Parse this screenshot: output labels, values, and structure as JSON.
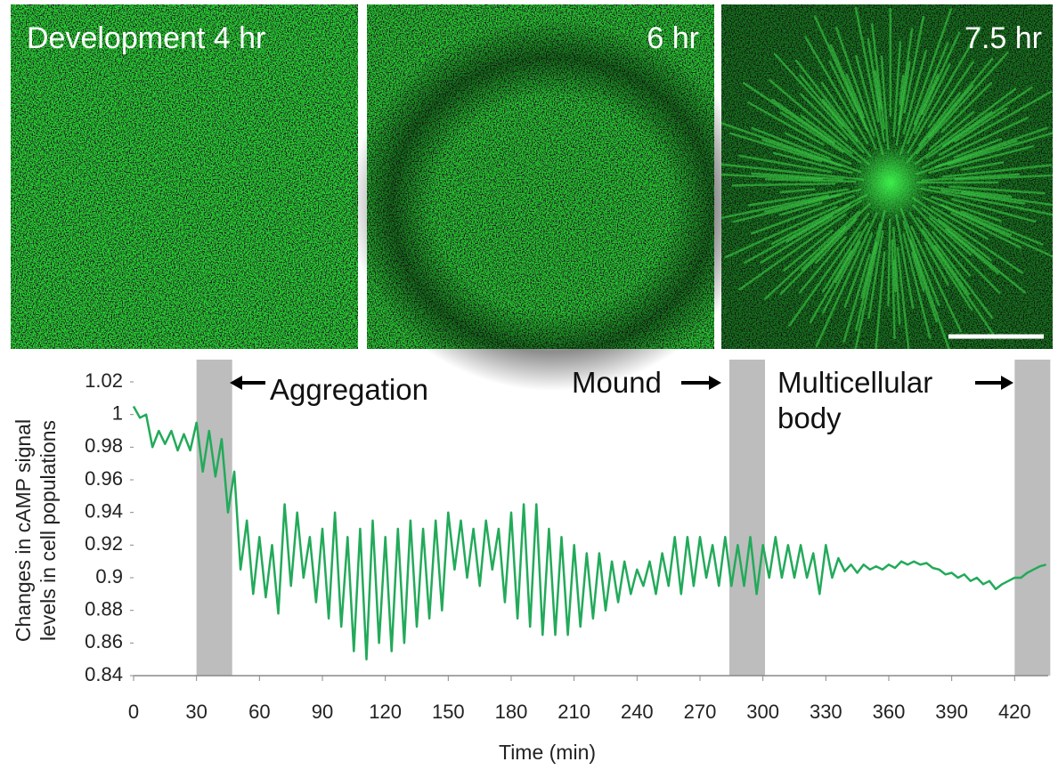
{
  "panels": [
    {
      "label": "Development 4 hr"
    },
    {
      "label": "6 hr"
    },
    {
      "label": "7.5 hr"
    }
  ],
  "chart_data": {
    "type": "line",
    "x_label": "Time (min)",
    "y_label": "Changes in cAMP signal levels in cell populations",
    "color": "#22aa5a",
    "xlim": [
      0,
      436
    ],
    "ylim": [
      0.84,
      1.02
    ],
    "xticks": [
      0,
      30,
      60,
      90,
      120,
      150,
      180,
      210,
      240,
      270,
      300,
      330,
      360,
      390,
      420
    ],
    "yticks": [
      0.84,
      0.86,
      0.88,
      0.9,
      0.92,
      0.94,
      0.96,
      0.98,
      1,
      1.02
    ],
    "shaded_regions": [
      [
        30,
        47
      ],
      [
        284,
        301
      ],
      [
        420,
        437
      ]
    ],
    "annotations": [
      "Aggregation",
      "Mound",
      "Multicellular body"
    ],
    "x": [
      0,
      3,
      6,
      9,
      12,
      15,
      18,
      21,
      24,
      27,
      30,
      33,
      36,
      39,
      42,
      45,
      48,
      51,
      54,
      57,
      60,
      63,
      66,
      69,
      72,
      75,
      78,
      81,
      84,
      87,
      90,
      93,
      96,
      99,
      102,
      105,
      108,
      111,
      114,
      117,
      120,
      123,
      126,
      129,
      132,
      135,
      138,
      141,
      144,
      147,
      150,
      153,
      156,
      159,
      162,
      165,
      168,
      171,
      174,
      177,
      180,
      183,
      186,
      189,
      192,
      195,
      198,
      201,
      204,
      207,
      210,
      213,
      216,
      219,
      222,
      225,
      228,
      231,
      234,
      237,
      240,
      243,
      246,
      249,
      252,
      255,
      258,
      261,
      264,
      267,
      270,
      273,
      276,
      279,
      282,
      285,
      288,
      291,
      294,
      297,
      300,
      303,
      306,
      309,
      312,
      315,
      318,
      321,
      324,
      327,
      330,
      333,
      336,
      339,
      342,
      345,
      348,
      351,
      354,
      357,
      360,
      363,
      366,
      369,
      372,
      375,
      378,
      381,
      384,
      387,
      390,
      393,
      396,
      399,
      402,
      405,
      408,
      411,
      414,
      417,
      420,
      423,
      426,
      429,
      432,
      435
    ],
    "values": [
      1.005,
      0.998,
      1.0,
      0.98,
      0.99,
      0.982,
      0.99,
      0.978,
      0.988,
      0.978,
      0.995,
      0.965,
      0.99,
      0.962,
      0.985,
      0.94,
      0.965,
      0.905,
      0.935,
      0.89,
      0.925,
      0.888,
      0.92,
      0.878,
      0.945,
      0.895,
      0.94,
      0.9,
      0.925,
      0.885,
      0.93,
      0.875,
      0.94,
      0.87,
      0.925,
      0.855,
      0.93,
      0.85,
      0.935,
      0.86,
      0.925,
      0.855,
      0.93,
      0.86,
      0.935,
      0.87,
      0.93,
      0.875,
      0.935,
      0.88,
      0.94,
      0.905,
      0.935,
      0.9,
      0.93,
      0.895,
      0.935,
      0.905,
      0.93,
      0.885,
      0.94,
      0.875,
      0.945,
      0.87,
      0.945,
      0.865,
      0.93,
      0.865,
      0.925,
      0.865,
      0.92,
      0.87,
      0.915,
      0.875,
      0.915,
      0.88,
      0.91,
      0.885,
      0.91,
      0.89,
      0.905,
      0.895,
      0.91,
      0.89,
      0.915,
      0.895,
      0.925,
      0.89,
      0.925,
      0.895,
      0.925,
      0.9,
      0.92,
      0.895,
      0.925,
      0.895,
      0.92,
      0.895,
      0.925,
      0.89,
      0.92,
      0.9,
      0.925,
      0.9,
      0.92,
      0.9,
      0.92,
      0.9,
      0.915,
      0.89,
      0.92,
      0.9,
      0.912,
      0.904,
      0.908,
      0.903,
      0.908,
      0.905,
      0.907,
      0.905,
      0.908,
      0.906,
      0.91,
      0.908,
      0.91,
      0.908,
      0.909,
      0.906,
      0.905,
      0.902,
      0.903,
      0.9,
      0.902,
      0.898,
      0.9,
      0.896,
      0.898,
      0.893,
      0.896,
      0.898,
      0.9,
      0.9,
      0.903,
      0.905,
      0.907,
      0.908
    ]
  }
}
